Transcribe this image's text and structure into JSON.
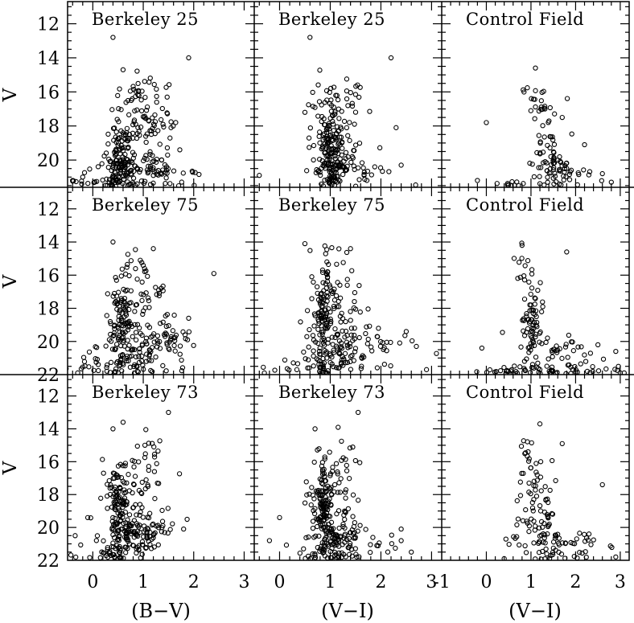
{
  "figure": {
    "y_axis_label": "V",
    "x_axis_labels": [
      "(B−V)",
      "(V−I)",
      "(V−I)"
    ]
  },
  "chart_data": [
    {
      "type": "scatter",
      "panel": "row1-col1",
      "title": "Berkeley 25",
      "xlim": [
        -0.5,
        3.2
      ],
      "ylim": [
        21.6,
        10.7
      ],
      "xticks": [],
      "yticks": [
        12,
        14,
        16,
        18,
        20
      ],
      "gen": {
        "seed": 11,
        "groups": [
          {
            "n": 95,
            "x": 0.55,
            "y": 19.6,
            "sx": 0.12,
            "sy": 0.9
          },
          {
            "n": 80,
            "x": 0.85,
            "y": 20.6,
            "sx": 0.4,
            "sy": 0.6
          },
          {
            "n": 55,
            "x": 1.0,
            "y": 17.8,
            "sx": 0.28,
            "sy": 0.9
          },
          {
            "n": 30,
            "x": 1.05,
            "y": 16.0,
            "sx": 0.25,
            "sy": 0.6
          },
          {
            "n": 30,
            "x": 0.4,
            "y": 21.25,
            "sx": 0.5,
            "sy": 0.25
          },
          {
            "n": 18,
            "x": 1.5,
            "y": 20.6,
            "sx": 0.3,
            "sy": 0.4
          }
        ]
      },
      "extra_points": [
        [
          0.4,
          12.8
        ],
        [
          1.9,
          14.0
        ],
        [
          1.55,
          18.1
        ],
        [
          -0.2,
          21.0
        ],
        [
          -0.4,
          21.2
        ],
        [
          0.6,
          14.7
        ]
      ]
    },
    {
      "type": "scatter",
      "panel": "row1-col2",
      "title": "Berkeley 25",
      "xlim": [
        -0.5,
        3.2
      ],
      "ylim": [
        21.6,
        10.7
      ],
      "xticks": [],
      "yticks": [],
      "gen": {
        "seed": 12,
        "groups": [
          {
            "n": 95,
            "x": 1.0,
            "y": 19.6,
            "sx": 0.1,
            "sy": 0.9
          },
          {
            "n": 70,
            "x": 1.15,
            "y": 20.5,
            "sx": 0.25,
            "sy": 0.6
          },
          {
            "n": 55,
            "x": 1.05,
            "y": 17.8,
            "sx": 0.28,
            "sy": 0.9
          },
          {
            "n": 25,
            "x": 1.2,
            "y": 16.2,
            "sx": 0.25,
            "sy": 0.6
          },
          {
            "n": 18,
            "x": 1.7,
            "y": 20.6,
            "sx": 0.4,
            "sy": 0.5
          }
        ]
      },
      "extra_points": [
        [
          0.6,
          12.8
        ],
        [
          2.2,
          14.0
        ],
        [
          2.3,
          18.1
        ],
        [
          -0.4,
          20.9
        ],
        [
          2.4,
          20.3
        ],
        [
          0.5,
          17.2
        ]
      ]
    },
    {
      "type": "scatter",
      "panel": "row1-col3",
      "title": "Control Field",
      "xlim": [
        -1,
        3.2
      ],
      "ylim": [
        21.6,
        10.7
      ],
      "xticks": [],
      "yticks": [],
      "gen": {
        "seed": 13,
        "groups": [
          {
            "n": 45,
            "x": 1.35,
            "y": 19.8,
            "sx": 0.22,
            "sy": 1.0
          },
          {
            "n": 35,
            "x": 1.55,
            "y": 20.8,
            "sx": 0.4,
            "sy": 0.5
          },
          {
            "n": 15,
            "x": 1.3,
            "y": 17.8,
            "sx": 0.2,
            "sy": 0.8
          },
          {
            "n": 12,
            "x": 1.1,
            "y": 16.5,
            "sx": 0.15,
            "sy": 0.4
          },
          {
            "n": 10,
            "x": 0.4,
            "y": 21.35,
            "sx": 0.25,
            "sy": 0.15
          }
        ]
      },
      "extra_points": [
        [
          1.1,
          14.6
        ],
        [
          0.0,
          17.8
        ],
        [
          -0.2,
          21.2
        ],
        [
          2.2,
          19.1
        ],
        [
          2.6,
          20.8
        ],
        [
          2.8,
          21.3
        ],
        [
          1.7,
          17.5
        ]
      ]
    },
    {
      "type": "scatter",
      "panel": "row2-col1",
      "title": "Berkeley 75",
      "xlim": [
        -0.5,
        3.2
      ],
      "ylim": [
        22,
        10.7
      ],
      "xticks": [],
      "yticks": [
        12,
        14,
        16,
        18,
        20,
        22
      ],
      "gen": {
        "seed": 21,
        "groups": [
          {
            "n": 90,
            "x": 0.55,
            "y": 18.8,
            "sx": 0.12,
            "sy": 1.3
          },
          {
            "n": 70,
            "x": 0.9,
            "y": 20.8,
            "sx": 0.45,
            "sy": 0.7
          },
          {
            "n": 45,
            "x": 1.0,
            "y": 17.5,
            "sx": 0.35,
            "sy": 1.2
          },
          {
            "n": 40,
            "x": 1.45,
            "y": 19.8,
            "sx": 0.3,
            "sy": 0.6
          },
          {
            "n": 30,
            "x": 0.3,
            "y": 21.6,
            "sx": 0.5,
            "sy": 0.3
          },
          {
            "n": 12,
            "x": 0.9,
            "y": 15.3,
            "sx": 0.2,
            "sy": 0.5
          }
        ]
      },
      "extra_points": [
        [
          2.4,
          15.9
        ],
        [
          0.4,
          14.0
        ],
        [
          1.2,
          14.4
        ],
        [
          -0.3,
          21.9
        ],
        [
          1.9,
          18.6
        ]
      ]
    },
    {
      "type": "scatter",
      "panel": "row2-col2",
      "title": "Berkeley 75",
      "xlim": [
        -0.5,
        3.2
      ],
      "ylim": [
        22,
        10.7
      ],
      "xticks": [],
      "yticks": [],
      "gen": {
        "seed": 22,
        "groups": [
          {
            "n": 90,
            "x": 0.85,
            "y": 18.8,
            "sx": 0.1,
            "sy": 1.3
          },
          {
            "n": 60,
            "x": 1.1,
            "y": 20.6,
            "sx": 0.3,
            "sy": 0.7
          },
          {
            "n": 50,
            "x": 1.1,
            "y": 17.5,
            "sx": 0.3,
            "sy": 1.1
          },
          {
            "n": 45,
            "x": 1.8,
            "y": 20.3,
            "sx": 0.45,
            "sy": 0.8
          },
          {
            "n": 25,
            "x": 0.6,
            "y": 21.6,
            "sx": 0.4,
            "sy": 0.25
          },
          {
            "n": 10,
            "x": 0.9,
            "y": 14.9,
            "sx": 0.2,
            "sy": 0.5
          }
        ]
      },
      "extra_points": [
        [
          0.5,
          14.1
        ],
        [
          1.4,
          14.4
        ],
        [
          2.5,
          19.4
        ],
        [
          2.7,
          20.3
        ],
        [
          2.9,
          21.7
        ],
        [
          -0.3,
          21.9
        ]
      ]
    },
    {
      "type": "scatter",
      "panel": "row2-col3",
      "title": "Control Field",
      "xlim": [
        -1,
        3.2
      ],
      "ylim": [
        22,
        10.7
      ],
      "xticks": [],
      "yticks": [],
      "gen": {
        "seed": 23,
        "groups": [
          {
            "n": 60,
            "x": 1.0,
            "y": 18.6,
            "sx": 0.12,
            "sy": 1.2
          },
          {
            "n": 45,
            "x": 1.65,
            "y": 20.8,
            "sx": 0.5,
            "sy": 0.6
          },
          {
            "n": 40,
            "x": 1.5,
            "y": 21.7,
            "sx": 0.7,
            "sy": 0.2
          },
          {
            "n": 12,
            "x": 0.85,
            "y": 15.6,
            "sx": 0.1,
            "sy": 0.6
          },
          {
            "n": 15,
            "x": 0.3,
            "y": 21.8,
            "sx": 0.3,
            "sy": 0.15
          }
        ]
      },
      "extra_points": [
        [
          1.8,
          14.6
        ],
        [
          0.8,
          14.2
        ],
        [
          2.9,
          20.6
        ],
        [
          -0.1,
          20.4
        ],
        [
          3.0,
          21.9
        ],
        [
          2.5,
          20.2
        ]
      ]
    },
    {
      "type": "scatter",
      "panel": "row3-col1",
      "title": "Berkeley 73",
      "xlim": [
        -0.5,
        3.2
      ],
      "ylim": [
        22,
        10.7
      ],
      "xticks": [
        0,
        1,
        2,
        3
      ],
      "yticks": [
        12,
        14,
        16,
        18,
        20,
        22
      ],
      "gen": {
        "seed": 31,
        "groups": [
          {
            "n": 100,
            "x": 0.5,
            "y": 18.7,
            "sx": 0.12,
            "sy": 1.2
          },
          {
            "n": 70,
            "x": 0.75,
            "y": 20.6,
            "sx": 0.3,
            "sy": 0.6
          },
          {
            "n": 55,
            "x": 1.1,
            "y": 20.2,
            "sx": 0.3,
            "sy": 0.6
          },
          {
            "n": 40,
            "x": 0.85,
            "y": 17.6,
            "sx": 0.3,
            "sy": 1.0
          },
          {
            "n": 25,
            "x": 0.3,
            "y": 21.7,
            "sx": 0.4,
            "sy": 0.2
          },
          {
            "n": 15,
            "x": 1.05,
            "y": 15.5,
            "sx": 0.25,
            "sy": 0.7
          }
        ]
      },
      "extra_points": [
        [
          1.5,
          13.0
        ],
        [
          0.6,
          13.6
        ],
        [
          0.4,
          14.0
        ],
        [
          -0.1,
          19.4
        ],
        [
          -0.35,
          20.5
        ],
        [
          1.8,
          20.1
        ]
      ]
    },
    {
      "type": "scatter",
      "panel": "row3-col2",
      "title": "Berkeley 73",
      "xlim": [
        -0.5,
        3.2
      ],
      "ylim": [
        22,
        10.7
      ],
      "xticks": [
        0,
        1,
        2,
        3
      ],
      "yticks": [],
      "gen": {
        "seed": 32,
        "groups": [
          {
            "n": 100,
            "x": 0.85,
            "y": 18.7,
            "sx": 0.1,
            "sy": 1.2
          },
          {
            "n": 65,
            "x": 1.05,
            "y": 20.6,
            "sx": 0.25,
            "sy": 0.6
          },
          {
            "n": 50,
            "x": 1.4,
            "y": 20.8,
            "sx": 0.4,
            "sy": 0.6
          },
          {
            "n": 40,
            "x": 1.05,
            "y": 17.6,
            "sx": 0.25,
            "sy": 1.0
          },
          {
            "n": 25,
            "x": 0.8,
            "y": 21.7,
            "sx": 0.35,
            "sy": 0.2
          },
          {
            "n": 12,
            "x": 1.2,
            "y": 15.5,
            "sx": 0.25,
            "sy": 0.6
          }
        ]
      },
      "extra_points": [
        [
          1.55,
          13.0
        ],
        [
          0.7,
          14.0
        ],
        [
          0.0,
          19.4
        ],
        [
          -0.2,
          20.8
        ],
        [
          2.4,
          20.1
        ],
        [
          2.6,
          21.5
        ]
      ]
    },
    {
      "type": "scatter",
      "panel": "row3-col3",
      "title": "Control Field",
      "xlim": [
        -1,
        3.2
      ],
      "ylim": [
        22,
        10.7
      ],
      "xticks": [
        -1,
        0,
        1,
        2,
        3
      ],
      "yticks": [],
      "gen": {
        "seed": 33,
        "groups": [
          {
            "n": 60,
            "x": 1.2,
            "y": 19.8,
            "sx": 0.25,
            "sy": 1.1
          },
          {
            "n": 50,
            "x": 1.6,
            "y": 21.0,
            "sx": 0.6,
            "sy": 0.55
          },
          {
            "n": 20,
            "x": 1.1,
            "y": 17.2,
            "sx": 0.2,
            "sy": 0.9
          },
          {
            "n": 10,
            "x": 0.9,
            "y": 15.6,
            "sx": 0.1,
            "sy": 0.5
          }
        ]
      },
      "extra_points": [
        [
          1.2,
          13.7
        ],
        [
          2.6,
          17.4
        ],
        [
          0.4,
          21.9
        ],
        [
          2.9,
          21.8
        ],
        [
          1.7,
          14.9
        ],
        [
          2.3,
          20.4
        ]
      ]
    }
  ]
}
